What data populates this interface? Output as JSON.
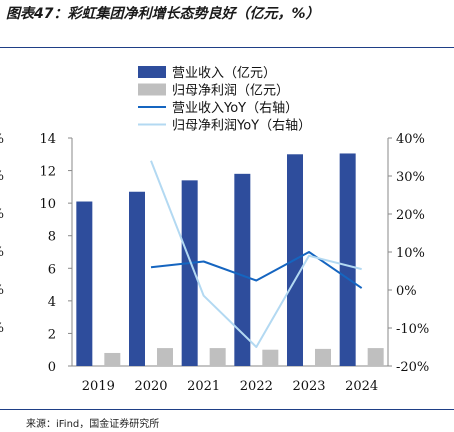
{
  "title": "图表47：彩虹集团净利增长态势良好（亿元，%）",
  "source": "来源：iFind，国金证券研究所",
  "left_edge_marks": [
    "%",
    "%",
    "%",
    "%",
    "%",
    "%"
  ],
  "chart_data": {
    "type": "bar",
    "categories": [
      "2019",
      "2020",
      "2021",
      "2022",
      "2023",
      "2024"
    ],
    "series": [
      {
        "name": "营业收入（亿元）",
        "type": "bar",
        "axis": "left",
        "color": "#2e4d9c",
        "values": [
          10.1,
          10.7,
          11.4,
          11.8,
          13.0,
          13.05
        ]
      },
      {
        "name": "归母净利润（亿元）",
        "type": "bar",
        "axis": "left",
        "color": "#bfbfbf",
        "values": [
          0.8,
          1.1,
          1.1,
          1.0,
          1.05,
          1.1
        ]
      },
      {
        "name": "营业收入YoY（右轴）",
        "type": "line",
        "axis": "right",
        "color": "#1565c0",
        "values": [
          null,
          6,
          7.5,
          2.5,
          10,
          0.5
        ]
      },
      {
        "name": "归母净利润YoY（右轴）",
        "type": "line",
        "axis": "right",
        "color": "#b3d9f2",
        "values": [
          null,
          34,
          -1.5,
          -15,
          9,
          5.5
        ]
      }
    ],
    "y_left": {
      "min": 0,
      "max": 14,
      "ticks": [
        0,
        2,
        4,
        6,
        8,
        10,
        12,
        14
      ]
    },
    "y_right": {
      "min": -20,
      "max": 40,
      "ticks": [
        "-20%",
        "-10%",
        "0%",
        "10%",
        "20%",
        "30%",
        "40%"
      ],
      "tick_values": [
        -20,
        -10,
        0,
        10,
        20,
        30,
        40
      ]
    },
    "legend_position": "top",
    "grid": false
  }
}
